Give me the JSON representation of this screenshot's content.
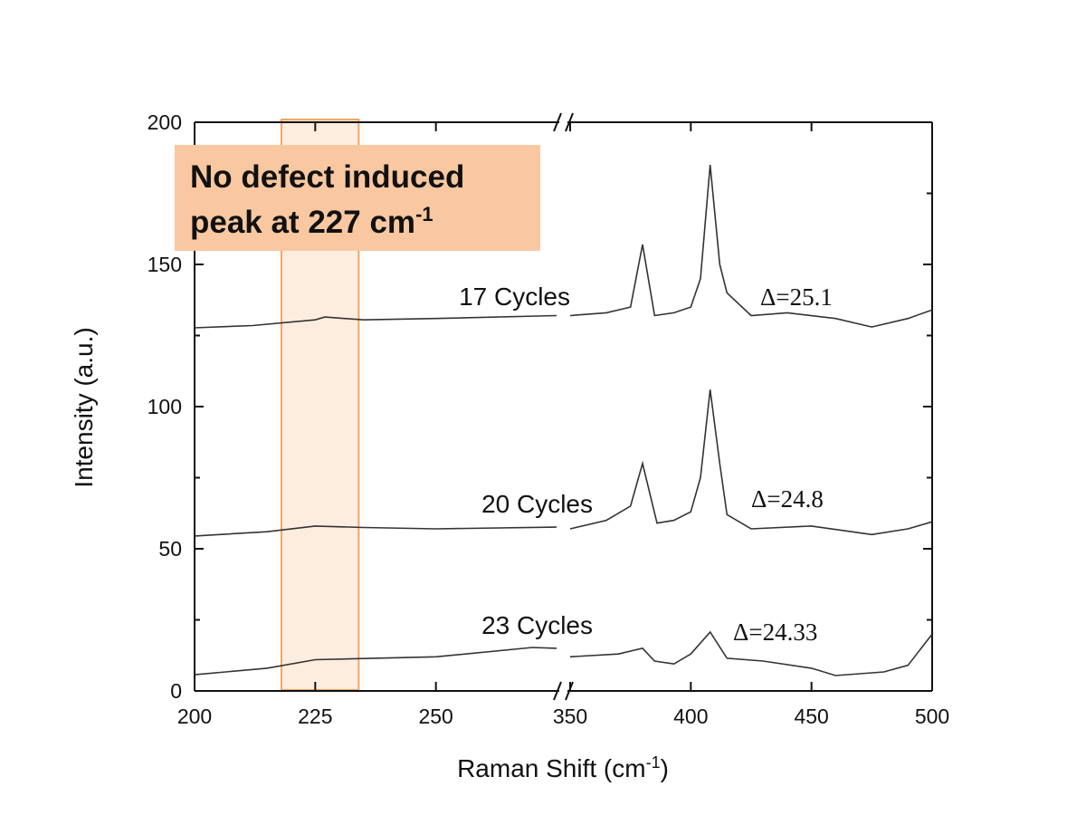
{
  "chart_data": {
    "type": "line",
    "x_label": "Raman Shift (cm",
    "x_label_sup": "-1",
    "x_label_end": ")",
    "y_label": "Intensity (a.u.)",
    "ylim": [
      0,
      200
    ],
    "yticks": [
      0,
      50,
      100,
      150,
      200
    ],
    "x_segments": [
      {
        "xlim": [
          200,
          275
        ],
        "xticks": [
          200,
          225,
          250
        ]
      },
      {
        "xlim": [
          350,
          500
        ],
        "xticks": [
          350,
          400,
          450,
          500
        ]
      }
    ],
    "highlight": {
      "xlim": [
        218,
        234
      ],
      "color": "#f4a460"
    },
    "annotation": {
      "line1": "No defect induced",
      "line2": "peak at 227 cm",
      "sup": "-1",
      "color": "#f9c8a0"
    },
    "series": [
      {
        "name": "17 Cycles",
        "delta_label": "Δ=25.1",
        "color": "#333333",
        "x": [
          200,
          212,
          225,
          227,
          235,
          250,
          275,
          null,
          350,
          365,
          375,
          380,
          385,
          393,
          400,
          404,
          408,
          412,
          415,
          425,
          440,
          460,
          475,
          490,
          500
        ],
        "values": [
          127.7,
          128.5,
          130.5,
          131.5,
          130.5,
          131,
          132,
          null,
          132,
          133,
          135,
          157,
          132,
          133,
          135,
          145,
          185,
          150,
          140,
          132,
          133,
          131,
          128,
          131,
          134
        ]
      },
      {
        "name": "20 Cycles",
        "delta_label": "Δ=24.8",
        "color": "#333333",
        "x": [
          200,
          215,
          225,
          235,
          250,
          275,
          null,
          350,
          365,
          375,
          380,
          386,
          393,
          400,
          404,
          408,
          412,
          415,
          425,
          450,
          475,
          490,
          500
        ],
        "values": [
          54.5,
          56,
          58,
          57.5,
          57,
          57.6,
          null,
          57,
          60,
          65,
          80,
          59,
          60,
          63,
          75,
          106,
          80,
          62,
          57,
          58,
          55,
          57,
          59.5
        ]
      },
      {
        "name": "23 Cycles",
        "delta_label": "Δ=24.33",
        "color": "#333333",
        "x": [
          200,
          215,
          225,
          250,
          270,
          275,
          null,
          350,
          370,
          380,
          385,
          393,
          400,
          408,
          415,
          430,
          450,
          460,
          480,
          490,
          500
        ],
        "values": [
          5.7,
          8,
          11,
          12,
          15.3,
          15,
          null,
          12,
          13,
          15,
          10.5,
          9.5,
          13,
          20.7,
          11.5,
          10.5,
          8,
          5.4,
          6.7,
          9,
          20
        ]
      }
    ]
  }
}
